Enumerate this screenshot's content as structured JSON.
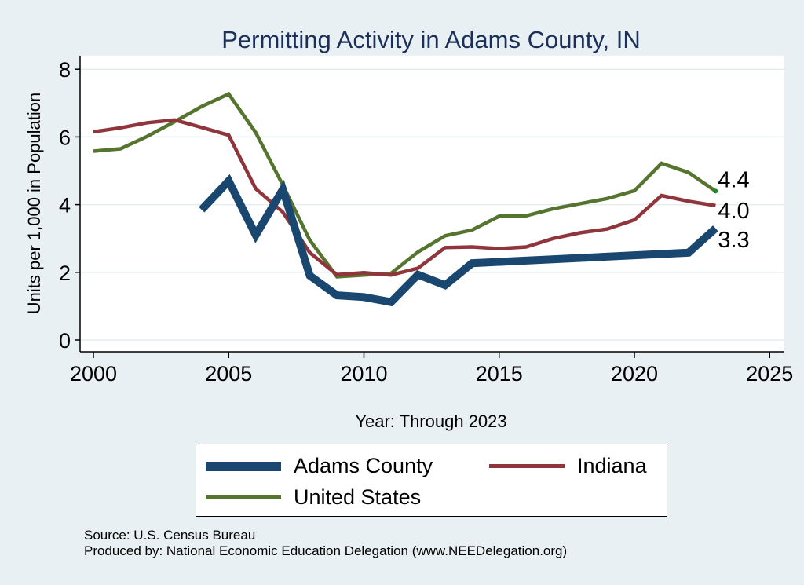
{
  "chart_data": {
    "type": "line",
    "title": "Permitting Activity in Adams County, IN",
    "xlabel": "Year: Through 2023",
    "ylabel": "Units per 1,000 in Population",
    "xlim": [
      2000,
      2025
    ],
    "ylim": [
      0,
      8
    ],
    "xticks": [
      2000,
      2005,
      2010,
      2015,
      2020,
      2025
    ],
    "yticks": [
      0,
      2,
      4,
      6,
      8
    ],
    "grid": true,
    "legend_position": "bottom",
    "series": [
      {
        "name": "Adams County",
        "color": "#1a476f",
        "x": [
          2004,
          2005,
          2006,
          2007,
          2008,
          2009,
          2010,
          2011,
          2012,
          2013,
          2014,
          2022,
          2023
        ],
        "values": [
          3.85,
          4.7,
          3.1,
          4.45,
          1.9,
          1.32,
          1.27,
          1.12,
          1.93,
          1.62,
          2.27,
          2.58,
          3.3
        ],
        "end_label": "3.3"
      },
      {
        "name": "Indiana",
        "color": "#90353b",
        "x": [
          2000,
          2001,
          2002,
          2003,
          2004,
          2005,
          2006,
          2007,
          2008,
          2009,
          2010,
          2011,
          2012,
          2013,
          2014,
          2015,
          2016,
          2017,
          2018,
          2019,
          2020,
          2021,
          2022,
          2023
        ],
        "values": [
          6.15,
          6.27,
          6.42,
          6.5,
          6.28,
          6.05,
          4.47,
          3.78,
          2.58,
          1.93,
          1.99,
          1.92,
          2.12,
          2.73,
          2.75,
          2.7,
          2.75,
          3.0,
          3.17,
          3.28,
          3.55,
          4.27,
          4.1,
          3.97
        ],
        "end_label": "4.0"
      },
      {
        "name": "United States",
        "color": "#55752f",
        "x": [
          2000,
          2001,
          2002,
          2003,
          2004,
          2005,
          2006,
          2007,
          2008,
          2009,
          2010,
          2011,
          2012,
          2013,
          2014,
          2015,
          2016,
          2017,
          2018,
          2019,
          2020,
          2021,
          2022,
          2023
        ],
        "values": [
          5.58,
          5.65,
          6.02,
          6.45,
          6.9,
          7.27,
          6.13,
          4.58,
          2.95,
          1.87,
          1.92,
          1.97,
          2.6,
          3.08,
          3.25,
          3.66,
          3.67,
          3.88,
          4.03,
          4.18,
          4.41,
          5.22,
          4.95,
          4.4
        ],
        "end_label": "4.4"
      }
    ]
  },
  "notes": {
    "source": "Source: U.S. Census Bureau",
    "produced_by": "Produced by: National Economic Education Delegation (www.NEEDelegation.org)"
  }
}
